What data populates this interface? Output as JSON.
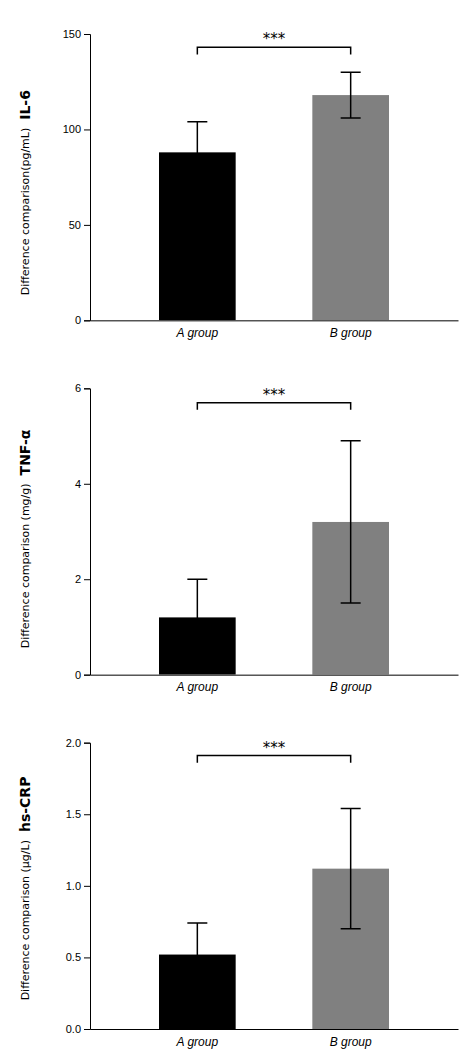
{
  "chart_data": [
    {
      "type": "bar",
      "ylabel": [
        "IL-6",
        "Difference comparison(pg/mL)"
      ],
      "categories": [
        "A group",
        "B group"
      ],
      "values": [
        88,
        118
      ],
      "errors": [
        16,
        12
      ],
      "colors": [
        "#000000",
        "#808080"
      ],
      "ylim": [
        0,
        150
      ],
      "yticks": [
        0,
        50,
        100,
        150
      ],
      "annotations": [
        {
          "text": "***",
          "y": 143
        }
      ],
      "grid": false
    },
    {
      "type": "bar",
      "ylabel": [
        "TNF-α",
        "Difference comparison (mg/g)"
      ],
      "categories": [
        "A group",
        "B group"
      ],
      "values": [
        1.2,
        3.2
      ],
      "errors": [
        0.8,
        1.7
      ],
      "colors": [
        "#000000",
        "#808080"
      ],
      "ylim": [
        0,
        6
      ],
      "yticks": [
        0,
        2,
        4,
        6
      ],
      "annotations": [
        {
          "text": "***",
          "y": 5.7
        }
      ],
      "grid": false
    },
    {
      "type": "bar",
      "ylabel": [
        "hs-CRP",
        "Difference comparison (μg/L)"
      ],
      "categories": [
        "A group",
        "B group"
      ],
      "values": [
        0.52,
        1.12
      ],
      "errors": [
        0.22,
        0.42
      ],
      "colors": [
        "#000000",
        "#808080"
      ],
      "ylim": [
        0,
        2.0
      ],
      "yticks": [
        {
          "value": 0,
          "label": "0.0"
        },
        0.5,
        {
          "value": 1,
          "label": "1.0"
        },
        1.5,
        {
          "value": 2,
          "label": "2.0"
        }
      ],
      "annotations": [
        {
          "text": "***",
          "y": 1.91
        }
      ],
      "grid": false
    }
  ]
}
